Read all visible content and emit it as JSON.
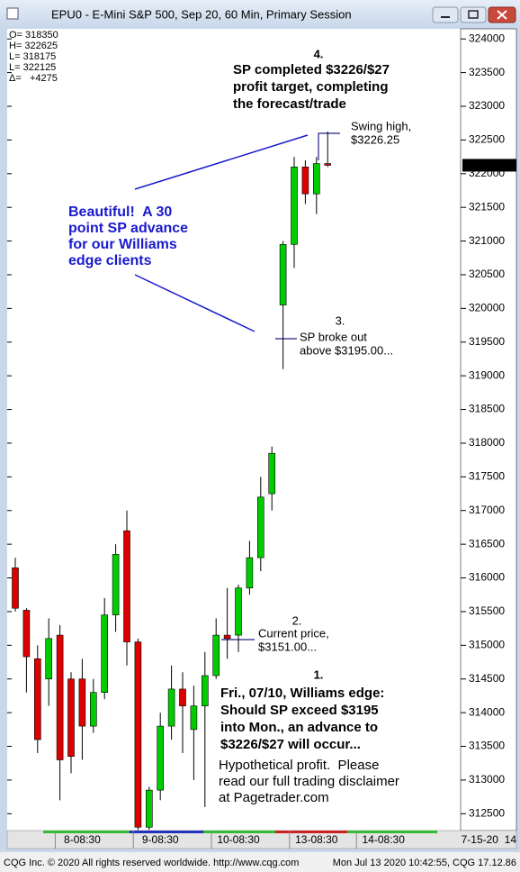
{
  "chart_data": {
    "type": "candlestick",
    "title": "EPU0 - E-Mini S&P 500, Sep 20, 60 Min, Primary Session",
    "readout": [
      "O= 318350",
      "H= 322625",
      "L= 318175",
      "L= 322125",
      "Δ=   +4275"
    ],
    "categories": [
      null,
      null,
      null,
      null,
      null,
      null,
      "8-08:30",
      null,
      null,
      null,
      null,
      null,
      null,
      "9-08:30",
      null,
      null,
      null,
      null,
      null,
      null,
      "10-08:30",
      null,
      null,
      null,
      null,
      null,
      null,
      "13-08:30",
      null,
      null,
      null,
      null,
      null,
      "14-08:30",
      null,
      null,
      null,
      null,
      null,
      null,
      null
    ],
    "open": [
      316150,
      315520,
      314800,
      314500,
      315150,
      314500,
      314500,
      313800,
      314300,
      315450,
      316700,
      315050,
      312300,
      312850,
      313800,
      314350,
      313750,
      314100,
      314550,
      315150,
      315150,
      315850,
      316300,
      317250,
      320050,
      320950,
      322100,
      321700,
      322150,
      null,
      null,
      null,
      null,
      null,
      null,
      null,
      null,
      null,
      null,
      null,
      null
    ],
    "high": [
      316300,
      315550,
      315000,
      315400,
      315300,
      314600,
      314800,
      314500,
      315700,
      316500,
      317000,
      315100,
      312900,
      314000,
      314700,
      314600,
      314400,
      314900,
      315400,
      315850,
      315900,
      316550,
      317500,
      317950,
      321000,
      322250,
      322200,
      322250,
      322625,
      null,
      null,
      null,
      null,
      null,
      null,
      null,
      null,
      null,
      null,
      null,
      null
    ],
    "low": [
      315500,
      314300,
      313400,
      314100,
      312700,
      313100,
      313300,
      313700,
      314200,
      315200,
      314700,
      312260,
      312260,
      312700,
      313600,
      313400,
      313000,
      312600,
      314500,
      314800,
      314900,
      315750,
      316100,
      317000,
      319100,
      320600,
      321550,
      321400,
      322100,
      null,
      null,
      null,
      null,
      null,
      null,
      null,
      null,
      null,
      null,
      null,
      null
    ],
    "close": [
      315550,
      314830,
      313600,
      315100,
      313300,
      313350,
      313800,
      314300,
      315450,
      316350,
      315050,
      312300,
      312850,
      313800,
      314350,
      314100,
      314100,
      314550,
      315150,
      315100,
      315850,
      316300,
      317200,
      317850,
      320950,
      322100,
      321700,
      322150,
      322125,
      null,
      null,
      null,
      null,
      null,
      null,
      null,
      null,
      null,
      null,
      null,
      null
    ],
    "up_color": "#00cc00",
    "down_color": "#dd0000",
    "ylim": [
      312250,
      324150
    ],
    "yticks": [
      312500,
      313000,
      313500,
      314000,
      314500,
      315000,
      315500,
      316000,
      316500,
      317000,
      317500,
      318000,
      318500,
      319000,
      319500,
      320000,
      320500,
      321000,
      321500,
      322000,
      322500,
      323000,
      323500,
      324000
    ],
    "last_price": 322125,
    "axis_end_label": "7-15-20  14",
    "annotations": {
      "target": {
        "number": "4.",
        "lines": [
          "SP completed $3226/$27",
          "profit target, completing",
          "the forecast/trade"
        ]
      },
      "swing": {
        "lines": [
          "Swing high,",
          "$3226.25"
        ]
      },
      "beautiful": {
        "lines": [
          "Beautiful!  A 30",
          "point SP advance",
          "for our Williams",
          "edge clients"
        ]
      },
      "breakout": {
        "number": "3.",
        "lines": [
          "SP broke out",
          "above $3195.00..."
        ]
      },
      "current": {
        "number": "2.",
        "lines": [
          "Current price,",
          "$3151.00..."
        ]
      },
      "forecast": {
        "number": "1.",
        "lines": [
          "Fri., 07/10, Williams edge:",
          "Should SP exceed $3195",
          "into Mon., an advance to",
          "$3226/$27 will occur..."
        ]
      },
      "disclaimer": {
        "lines": [
          "Hypothetical profit.  Please",
          "read our full trading disclaimer",
          "at Pagetrader.com"
        ]
      }
    }
  },
  "status_bar": {
    "left": "CQG Inc. © 2020 All rights reserved worldwide. http://www.cqg.com",
    "right": "Mon Jul 13 2020 10:42:55, CQG 17.12.86"
  }
}
